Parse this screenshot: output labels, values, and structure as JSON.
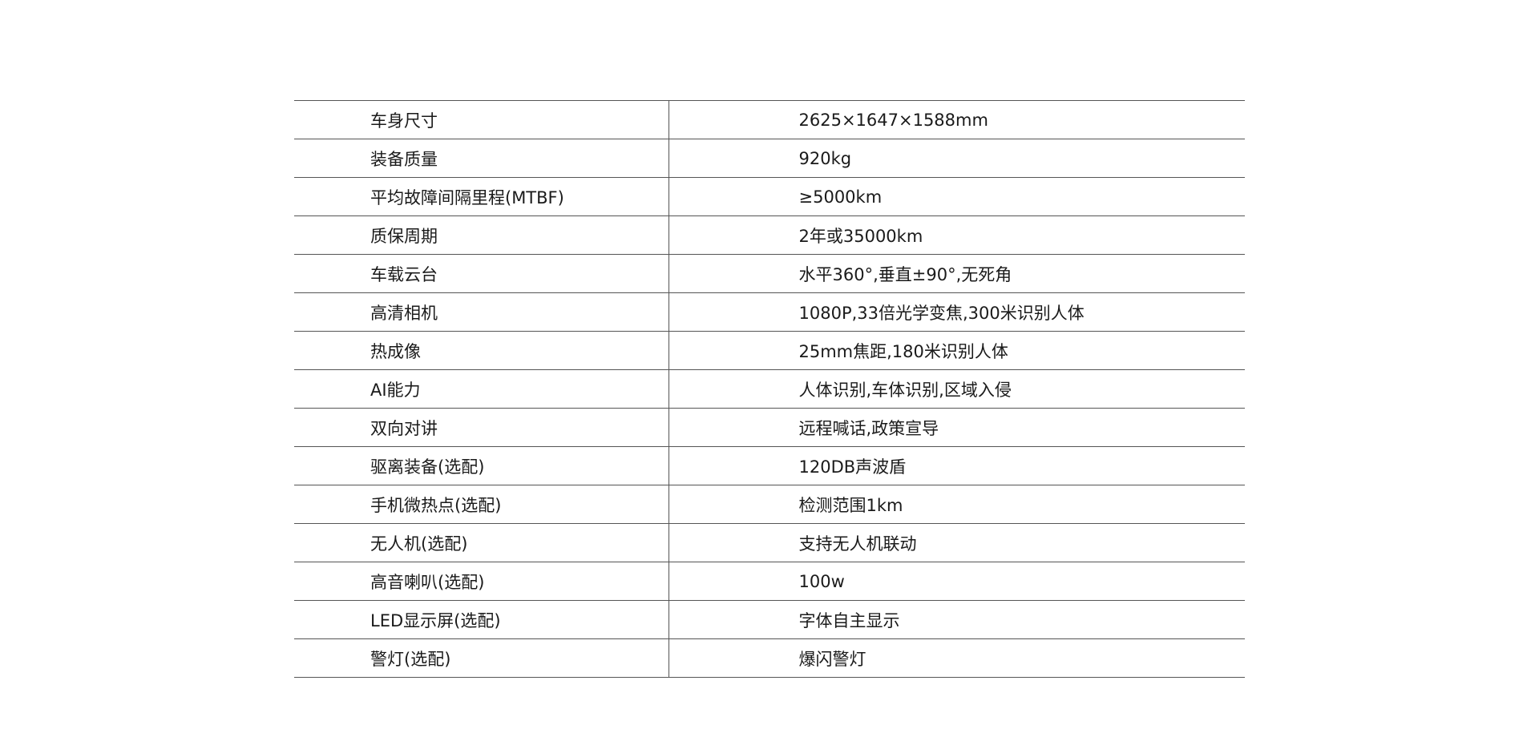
{
  "rows": [
    {
      "label": "车身尺寸",
      "value": "2625×1647×1588mm"
    },
    {
      "label": "装备质量",
      "value": "920kg"
    },
    {
      "label": "平均故障间隔里程(MTBF)",
      "value": "≥5000km"
    },
    {
      "label": "质保周期",
      "value": "2年或35000km"
    },
    {
      "label": "车载云台",
      "value": "水平360°,垂直±90°,无死角"
    },
    {
      "label": "高清相机",
      "value": "1080P,33倍光学变焦,300米识别人体"
    },
    {
      "label": "热成像",
      "value": "25mm焦距,180米识别人体"
    },
    {
      "label": "AI能力",
      "value": "人体识别,车体识别,区域入侵"
    },
    {
      "label": "双向对讲",
      "value": "远程喊话,政策宣导"
    },
    {
      "label": "驱离装备(选配)",
      "value": "120DB声波盾"
    },
    {
      "label": "手机微热点(选配)",
      "value": "检测范围1km"
    },
    {
      "label": "无人机(选配)",
      "value": "支持无人机联动"
    },
    {
      "label": "高音喇叭(选配)",
      "value": "100w"
    },
    {
      "label": "LED显示屏(选配)",
      "value": "字体自主显示"
    },
    {
      "label": "警灯(选配)",
      "value": "爆闪警灯"
    }
  ]
}
